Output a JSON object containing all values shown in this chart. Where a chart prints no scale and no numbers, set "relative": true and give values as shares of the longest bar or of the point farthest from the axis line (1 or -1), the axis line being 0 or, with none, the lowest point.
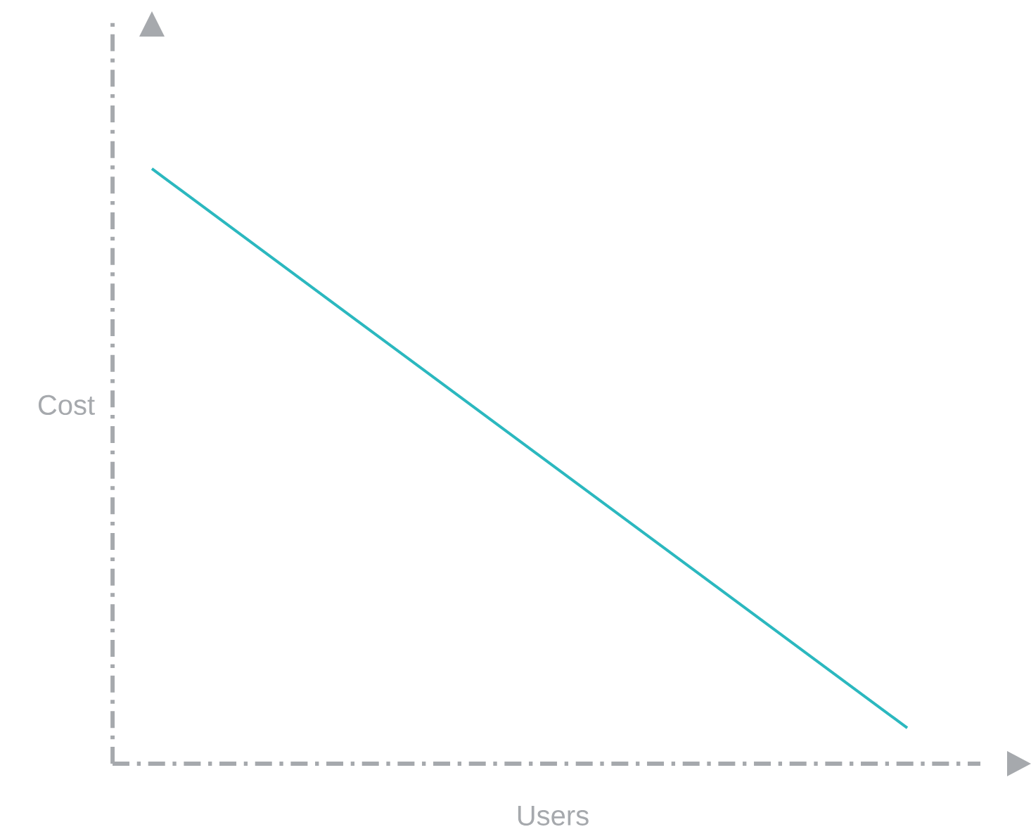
{
  "chart_data": {
    "type": "line",
    "relative": true,
    "xlabel": "Users",
    "ylabel": "Cost",
    "categories": [
      null,
      null
    ],
    "series": [
      {
        "color": "#2bb8bf",
        "values": [
          1,
          0.06
        ]
      }
    ]
  }
}
